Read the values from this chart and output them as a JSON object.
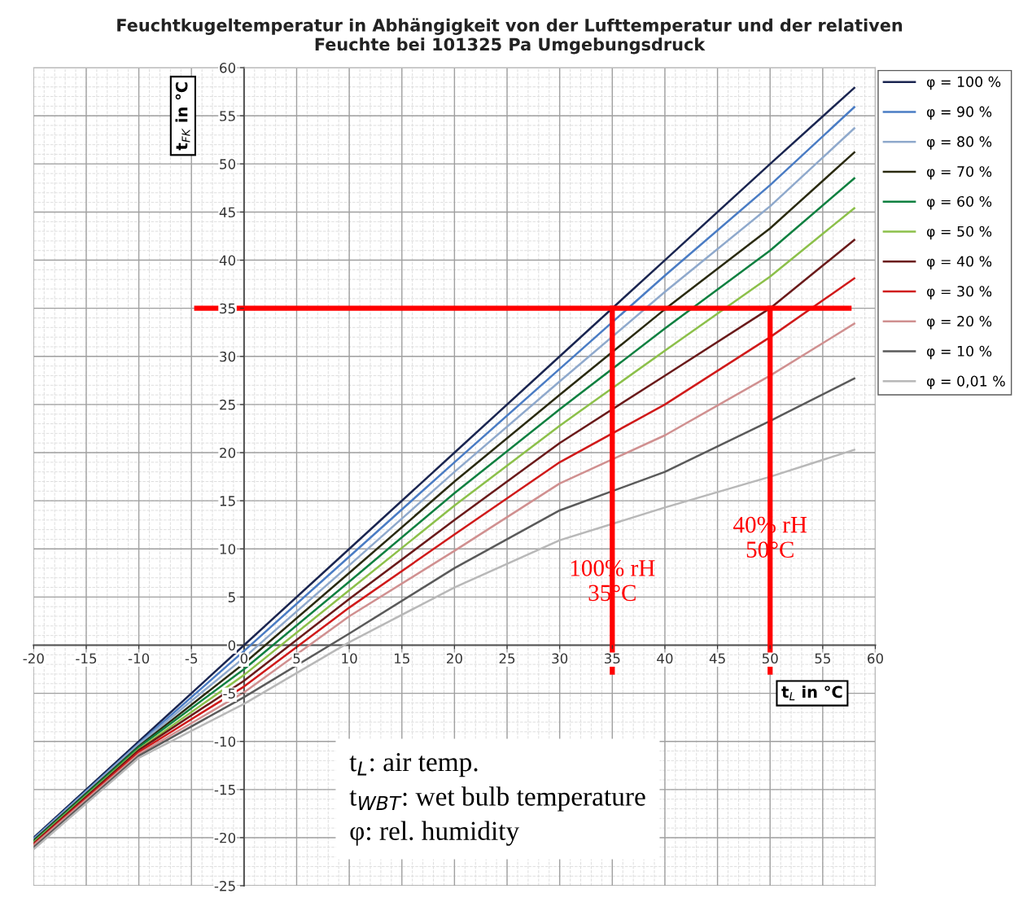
{
  "chart_data": {
    "type": "line",
    "title": "Feuchtkugeltemperatur in Abhängigkeit von der Lufttemperatur und der relativen\nFeuchte bei 101325 Pa Umgebungsdruck",
    "xlabel": "t$_{L}$ in °C",
    "ylabel": "t$_{FK}$ in °C",
    "x": [
      -20,
      -10,
      0,
      10,
      20,
      30,
      40,
      50,
      58
    ],
    "series": [
      {
        "name": "φ = 100 %",
        "color": "#1a2550",
        "values": [
          -20,
          -10,
          0,
          10,
          20,
          30,
          40,
          50,
          57.9
        ]
      },
      {
        "name": "φ = 90 %",
        "color": "#4a7cc4",
        "values": [
          -20.1,
          -10.2,
          -0.6,
          9.2,
          19,
          28.7,
          38.4,
          47.8,
          55.9
        ]
      },
      {
        "name": "φ = 80 %",
        "color": "#8fa9cc",
        "values": [
          -20.2,
          -10.3,
          -1.3,
          8.3,
          18,
          27.4,
          36.7,
          45.6,
          53.7
        ]
      },
      {
        "name": "φ = 70 %",
        "color": "#2a2a10",
        "values": [
          -20.3,
          -10.5,
          -1.9,
          7.5,
          17,
          26,
          34.9,
          43.3,
          51.2
        ]
      },
      {
        "name": "φ = 60 %",
        "color": "#0f8040",
        "values": [
          -20.4,
          -10.6,
          -2.5,
          6.6,
          15.8,
          24.5,
          32.9,
          41,
          48.5
        ]
      },
      {
        "name": "φ = 50 %",
        "color": "#8cc04a",
        "values": [
          -20.5,
          -10.8,
          -3.1,
          5.7,
          14.5,
          22.8,
          30.6,
          38.3,
          45.4
        ]
      },
      {
        "name": "φ = 40 %",
        "color": "#6a1a1a",
        "values": [
          -20.6,
          -10.9,
          -3.7,
          4.8,
          13,
          21,
          28,
          35,
          42.1
        ]
      },
      {
        "name": "φ = 30 %",
        "color": "#d01a1a",
        "values": [
          -20.7,
          -11.1,
          -4.3,
          3.9,
          11.5,
          19,
          25,
          32,
          38.1
        ]
      },
      {
        "name": "φ = 20 %",
        "color": "#d09090",
        "values": [
          -20.8,
          -11.3,
          -4.9,
          3,
          9.8,
          16.8,
          21.8,
          28,
          33.4
        ]
      },
      {
        "name": "φ = 10 %",
        "color": "#5a5a5a",
        "values": [
          -21,
          -11.5,
          -5.4,
          1.2,
          8,
          14,
          18,
          23.3,
          27.7
        ]
      },
      {
        "name": "φ = 0,01 %",
        "color": "#b8b8b8",
        "values": [
          -21.2,
          -11.7,
          -6.1,
          0.3,
          6,
          10.9,
          14.3,
          17.5,
          20.3
        ]
      },
      {
        "color": "#ff0000",
        "x": [
          -4.5,
          57.5
        ],
        "values": [
          35,
          35
        ]
      },
      {
        "color": "#ff0000",
        "x": [
          35,
          35
        ],
        "values": [
          -2.8,
          35
        ]
      },
      {
        "color": "#ff0000",
        "x": [
          50,
          50
        ],
        "values": [
          -2.8,
          35
        ]
      }
    ],
    "xlim": [
      -20,
      60
    ],
    "ylim": [
      -25,
      60
    ],
    "xticks": [
      -20,
      -15,
      -10,
      -5,
      0,
      5,
      10,
      15,
      20,
      25,
      30,
      35,
      40,
      45,
      50,
      55,
      60
    ],
    "yticks": [
      -25,
      -20,
      -15,
      -10,
      -5,
      0,
      5,
      10,
      15,
      20,
      25,
      30,
      35,
      40,
      45,
      50,
      55,
      60
    ],
    "grid": true,
    "legend": "top right",
    "marker": "none",
    "line_style": "solid",
    "annotations": [
      {
        "text": "100% rH\n35°C",
        "x": 35,
        "y": 6.5
      },
      {
        "text": "40% rH\n50°C",
        "x": 50,
        "y": 11
      },
      "t$_{L}$: air temp.\nt$_{WBT}$: wet bulb temperature\nφ: rel. humidity"
    ]
  }
}
